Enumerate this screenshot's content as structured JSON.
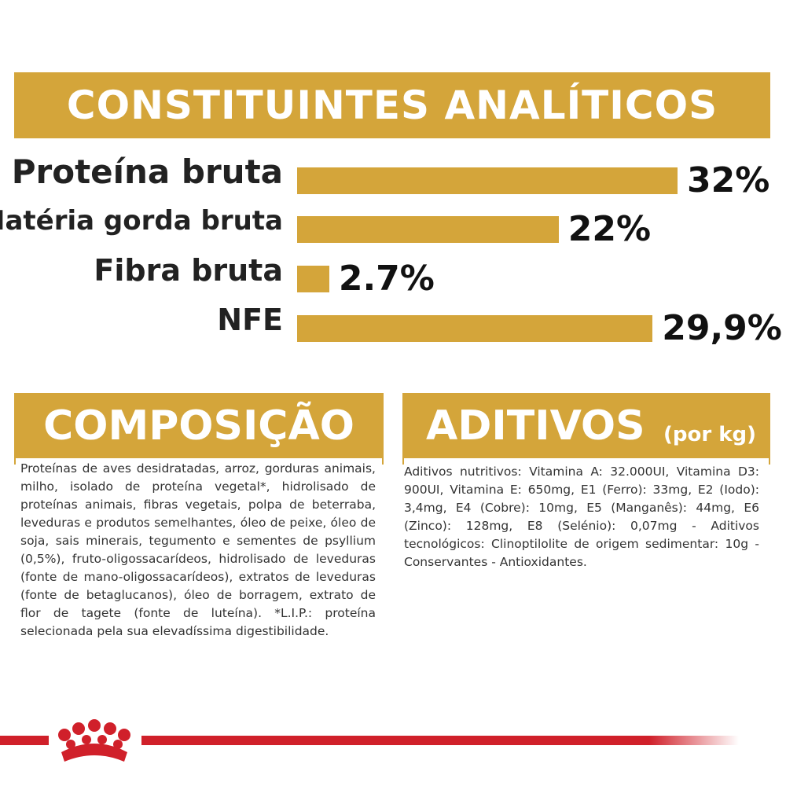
{
  "header": {
    "title": "CONSTITUINTES ANALÍTICOS"
  },
  "chart_data": {
    "type": "bar",
    "orientation": "horizontal",
    "color": "#d4a53a",
    "categories": [
      "Proteína bruta",
      "Matéria gorda bruta",
      "Fibra bruta",
      "NFE"
    ],
    "values": [
      32,
      22,
      2.7,
      29.9
    ],
    "value_labels": [
      "32%",
      "22%",
      "2.7%",
      "29,9%"
    ]
  },
  "composition": {
    "title": "COMPOSIÇÃO",
    "text": "Proteínas de aves desidratadas, arroz, gorduras animais, milho, isolado de proteína vegetal*, hidrolisado de proteínas animais, fibras vegetais, polpa de beterraba, leveduras e produtos semelhantes, óleo de peixe, óleo de soja, sais minerais, tegumento e sementes de psyllium (0,5%), fruto-oligossacarídeos, hidrolisado de leveduras (fonte de mano-oligossacarídeos), extratos de leveduras (fonte de betaglucanos), óleo de borragem, extrato de flor de tagete (fonte de luteína). *L.I.P.: proteína selecionada pela sua elevadíssima digestibilidade."
  },
  "additives": {
    "title": "ADITIVOS",
    "unit": "(por kg)",
    "text": "Aditivos nutritivos: Vitamina A: 32.000UI, Vitamina D3: 900UI, Vitamina E: 650mg, E1 (Ferro): 33mg, E2 (Iodo): 3,4mg, E4 (Cobre): 10mg, E5 (Manganês): 44mg, E6 (Zinco): 128mg, E8 (Selénio): 0,07mg - Aditivos tecnológicos: Clinoptilolite de origem sedimentar: 10g - Conservantes - Antioxidantes."
  }
}
